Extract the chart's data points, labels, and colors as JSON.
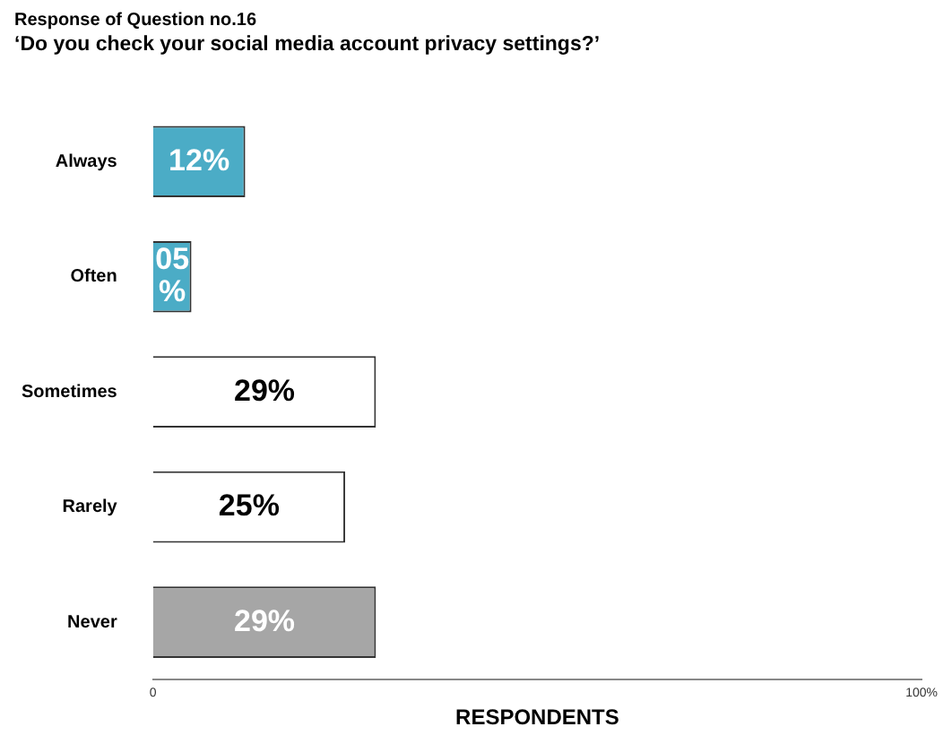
{
  "chart_data": {
    "type": "bar",
    "orientation": "horizontal",
    "title": "Response of Question no.16",
    "subtitle": "‘Do you check your social media account privacy settings?’",
    "xlabel": "RESPONDENTS",
    "categories": [
      "Always",
      "Often",
      "Sometimes",
      "Rarely",
      "Never"
    ],
    "values": [
      12,
      5,
      29,
      25,
      29
    ],
    "colors": [
      "#4bacc6",
      "#4bacc6",
      "#ffffff",
      "#ffffff",
      "#a6a6a6"
    ],
    "value_labels": [
      "12%",
      "05 %",
      "29%",
      "25%",
      "29%"
    ],
    "xlim": [
      0,
      100
    ],
    "xticks": [
      0,
      {
        "value": 100,
        "label": "100%"
      }
    ],
    "grid": false,
    "legend": false
  }
}
